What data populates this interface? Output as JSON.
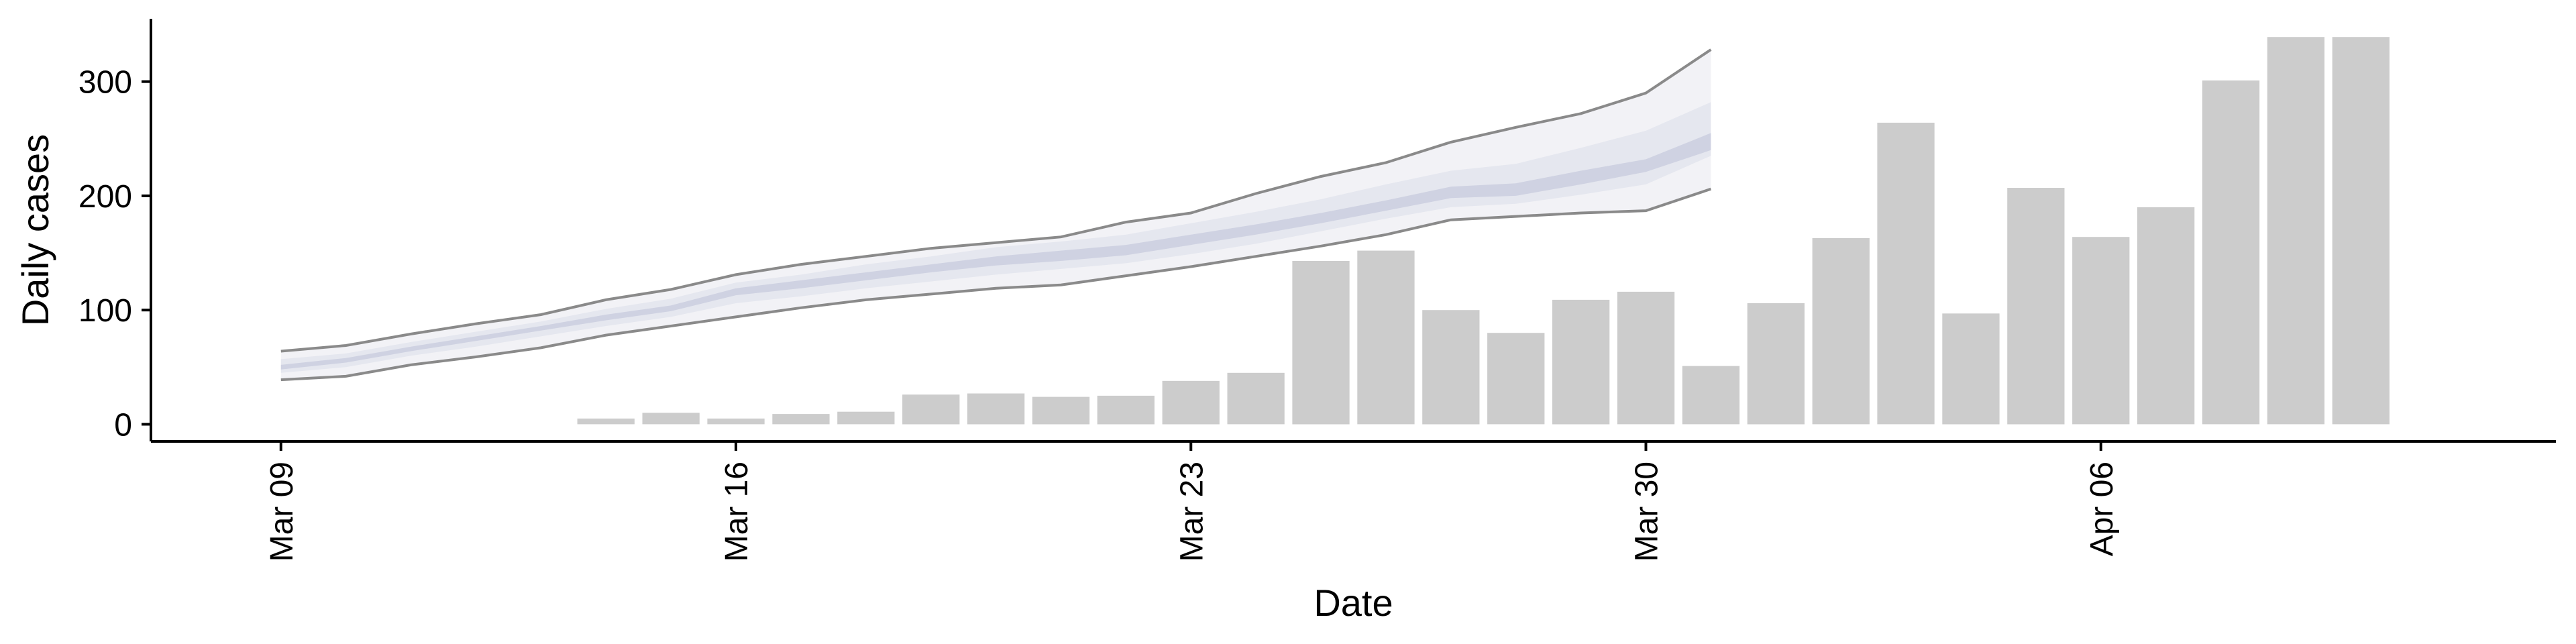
{
  "chart_data": {
    "type": "bar",
    "title": "",
    "xlabel": "Date",
    "ylabel": "Daily cases",
    "ylim": [
      -15,
      355
    ],
    "xlim": [
      "2020-03-07",
      "2020-04-13"
    ],
    "x_ticks": [
      {
        "date": "2020-03-09",
        "label": "Mar 09"
      },
      {
        "date": "2020-03-16",
        "label": "Mar 16"
      },
      {
        "date": "2020-03-23",
        "label": "Mar 23"
      },
      {
        "date": "2020-03-30",
        "label": "Mar 30"
      },
      {
        "date": "2020-04-06",
        "label": "Apr 06"
      }
    ],
    "y_ticks": [
      0,
      100,
      200,
      300
    ],
    "grid": false,
    "bars": {
      "color": "#cccccc",
      "dates": [
        "2020-03-14",
        "2020-03-15",
        "2020-03-16",
        "2020-03-17",
        "2020-03-18",
        "2020-03-19",
        "2020-03-20",
        "2020-03-21",
        "2020-03-22",
        "2020-03-23",
        "2020-03-24",
        "2020-03-25",
        "2020-03-26",
        "2020-03-27",
        "2020-03-28",
        "2020-03-29",
        "2020-03-30",
        "2020-03-31",
        "2020-04-01",
        "2020-04-02",
        "2020-04-03",
        "2020-04-04",
        "2020-04-05",
        "2020-04-06",
        "2020-04-07",
        "2020-04-08",
        "2020-04-09",
        "2020-04-10"
      ],
      "values": [
        5,
        10,
        5,
        9,
        11,
        26,
        27,
        24,
        25,
        38,
        45,
        143,
        152,
        100,
        80,
        109,
        116,
        51,
        106,
        163,
        264,
        97,
        207,
        164,
        190,
        301,
        339,
        339
      ]
    },
    "forecast": {
      "dates": [
        "2020-03-09",
        "2020-03-10",
        "2020-03-11",
        "2020-03-12",
        "2020-03-13",
        "2020-03-14",
        "2020-03-15",
        "2020-03-16",
        "2020-03-17",
        "2020-03-18",
        "2020-03-19",
        "2020-03-20",
        "2020-03-21",
        "2020-03-22",
        "2020-03-23",
        "2020-03-24",
        "2020-03-25",
        "2020-03-26",
        "2020-03-27",
        "2020-03-28",
        "2020-03-29",
        "2020-03-30",
        "2020-03-31"
      ],
      "lower_90": [
        39,
        42,
        52,
        59,
        67,
        78,
        86,
        94,
        102,
        109,
        114,
        119,
        122,
        130,
        138,
        147,
        156,
        166,
        179,
        182,
        185,
        187,
        206
      ],
      "lower_50": [
        45,
        50,
        60,
        68,
        77,
        86,
        94,
        106,
        112,
        119,
        125,
        131,
        136,
        141,
        149,
        158,
        169,
        180,
        190,
        193,
        201,
        210,
        235
      ],
      "lower_20": [
        48,
        54,
        64,
        73,
        82,
        91,
        99,
        113,
        119,
        126,
        133,
        139,
        143,
        148,
        157,
        166,
        176,
        187,
        198,
        200,
        210,
        221,
        240
      ],
      "upper_20": [
        52,
        58,
        68,
        77,
        86,
        96,
        104,
        119,
        126,
        133,
        140,
        147,
        152,
        157,
        166,
        175,
        185,
        196,
        208,
        211,
        222,
        232,
        255
      ],
      "upper_50": [
        57,
        62,
        72,
        81,
        90,
        101,
        110,
        124,
        131,
        140,
        147,
        155,
        160,
        166,
        176,
        186,
        197,
        210,
        222,
        228,
        242,
        257,
        282
      ],
      "upper_90": [
        64,
        69,
        79,
        88,
        96,
        109,
        118,
        131,
        140,
        147,
        154,
        159,
        164,
        177,
        185,
        202,
        217,
        229,
        247,
        260,
        272,
        290,
        328
      ],
      "band_colors": {
        "band_90": "#f2f2f6",
        "band_50": "#e5e7ef",
        "band_20": "#cfd2e2",
        "edge": "#8a8a8a"
      }
    }
  }
}
